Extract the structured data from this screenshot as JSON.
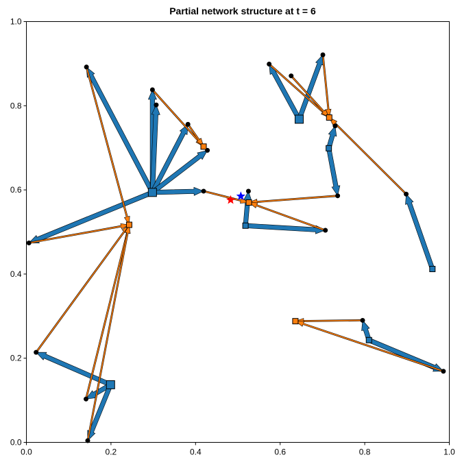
{
  "chart_data": {
    "type": "network",
    "title": "Partial network structure at t = 6",
    "xlabel": "",
    "ylabel": "",
    "xlim": [
      0,
      1
    ],
    "ylim": [
      0,
      1
    ],
    "xticks": [
      "0.0",
      "0.2",
      "0.4",
      "0.6",
      "0.8",
      "1.0"
    ],
    "yticks": [
      "0.0",
      "0.2",
      "0.4",
      "0.6",
      "0.8",
      "1.0"
    ],
    "grid": false,
    "colors": {
      "blue_edge": "#1f77b4",
      "orange_edge": "#ff7f0e",
      "node": "#000000",
      "red_star": "#ff0000",
      "blue_star": "#0000ff"
    },
    "blue_hubs": [
      {
        "id": "B1",
        "x": 0.298,
        "y": 0.594,
        "size": "large"
      },
      {
        "id": "B2",
        "x": 0.645,
        "y": 0.768,
        "size": "large"
      },
      {
        "id": "B3",
        "x": 0.199,
        "y": 0.137,
        "size": "large"
      },
      {
        "id": "B4",
        "x": 0.715,
        "y": 0.699,
        "size": "small"
      },
      {
        "id": "B5",
        "x": 0.96,
        "y": 0.412,
        "size": "small"
      },
      {
        "id": "B6",
        "x": 0.518,
        "y": 0.515,
        "size": "small"
      },
      {
        "id": "B7",
        "x": 0.81,
        "y": 0.243,
        "size": "small"
      }
    ],
    "orange_hubs": [
      {
        "id": "O1",
        "x": 0.243,
        "y": 0.517
      },
      {
        "id": "O2",
        "x": 0.419,
        "y": 0.703
      },
      {
        "id": "O3",
        "x": 0.716,
        "y": 0.772
      },
      {
        "id": "O4",
        "x": 0.526,
        "y": 0.57
      },
      {
        "id": "O5",
        "x": 0.636,
        "y": 0.288
      }
    ],
    "nodes": [
      {
        "x": 0.142,
        "y": 0.892
      },
      {
        "x": 0.298,
        "y": 0.838
      },
      {
        "x": 0.307,
        "y": 0.802
      },
      {
        "x": 0.382,
        "y": 0.756
      },
      {
        "x": 0.428,
        "y": 0.694
      },
      {
        "x": 0.419,
        "y": 0.597
      },
      {
        "x": 0.006,
        "y": 0.474
      },
      {
        "x": 0.023,
        "y": 0.214
      },
      {
        "x": 0.141,
        "y": 0.103
      },
      {
        "x": 0.145,
        "y": 0.004
      },
      {
        "x": 0.574,
        "y": 0.899
      },
      {
        "x": 0.626,
        "y": 0.871
      },
      {
        "x": 0.701,
        "y": 0.921
      },
      {
        "x": 0.73,
        "y": 0.752
      },
      {
        "x": 0.736,
        "y": 0.586
      },
      {
        "x": 0.898,
        "y": 0.59
      },
      {
        "x": 0.525,
        "y": 0.597
      },
      {
        "x": 0.707,
        "y": 0.504
      },
      {
        "x": 0.795,
        "y": 0.29
      },
      {
        "x": 0.986,
        "y": 0.169
      }
    ],
    "blue_edges": [
      {
        "from": [
          0.298,
          0.594
        ],
        "to": [
          0.142,
          0.892
        ]
      },
      {
        "from": [
          0.298,
          0.594
        ],
        "to": [
          0.298,
          0.838
        ]
      },
      {
        "from": [
          0.298,
          0.594
        ],
        "to": [
          0.307,
          0.802
        ]
      },
      {
        "from": [
          0.298,
          0.594
        ],
        "to": [
          0.382,
          0.756
        ]
      },
      {
        "from": [
          0.298,
          0.594
        ],
        "to": [
          0.428,
          0.694
        ]
      },
      {
        "from": [
          0.298,
          0.594
        ],
        "to": [
          0.419,
          0.597
        ]
      },
      {
        "from": [
          0.298,
          0.594
        ],
        "to": [
          0.006,
          0.474
        ]
      },
      {
        "from": [
          0.199,
          0.137
        ],
        "to": [
          0.023,
          0.214
        ]
      },
      {
        "from": [
          0.199,
          0.137
        ],
        "to": [
          0.141,
          0.103
        ]
      },
      {
        "from": [
          0.199,
          0.137
        ],
        "to": [
          0.145,
          0.004
        ]
      },
      {
        "from": [
          0.645,
          0.768
        ],
        "to": [
          0.574,
          0.899
        ]
      },
      {
        "from": [
          0.645,
          0.768
        ],
        "to": [
          0.701,
          0.921
        ]
      },
      {
        "from": [
          0.715,
          0.699
        ],
        "to": [
          0.73,
          0.752
        ]
      },
      {
        "from": [
          0.715,
          0.699
        ],
        "to": [
          0.736,
          0.586
        ]
      },
      {
        "from": [
          0.96,
          0.412
        ],
        "to": [
          0.898,
          0.59
        ]
      },
      {
        "from": [
          0.518,
          0.515
        ],
        "to": [
          0.525,
          0.597
        ]
      },
      {
        "from": [
          0.518,
          0.515
        ],
        "to": [
          0.707,
          0.504
        ]
      },
      {
        "from": [
          0.81,
          0.243
        ],
        "to": [
          0.795,
          0.29
        ]
      },
      {
        "from": [
          0.81,
          0.243
        ],
        "to": [
          0.986,
          0.169
        ]
      }
    ],
    "orange_edges": [
      {
        "from": [
          0.142,
          0.892
        ],
        "to": [
          0.243,
          0.517
        ]
      },
      {
        "from": [
          0.006,
          0.474
        ],
        "to": [
          0.243,
          0.517
        ]
      },
      {
        "from": [
          0.023,
          0.214
        ],
        "to": [
          0.243,
          0.517
        ]
      },
      {
        "from": [
          0.141,
          0.103
        ],
        "to": [
          0.243,
          0.517
        ]
      },
      {
        "from": [
          0.145,
          0.004
        ],
        "to": [
          0.243,
          0.517
        ]
      },
      {
        "from": [
          0.298,
          0.838
        ],
        "to": [
          0.419,
          0.703
        ]
      },
      {
        "from": [
          0.382,
          0.756
        ],
        "to": [
          0.419,
          0.703
        ]
      },
      {
        "from": [
          0.419,
          0.597
        ],
        "to": [
          0.526,
          0.57
        ]
      },
      {
        "from": [
          0.736,
          0.586
        ],
        "to": [
          0.526,
          0.57
        ]
      },
      {
        "from": [
          0.707,
          0.504
        ],
        "to": [
          0.526,
          0.57
        ]
      },
      {
        "from": [
          0.574,
          0.899
        ],
        "to": [
          0.716,
          0.772
        ]
      },
      {
        "from": [
          0.626,
          0.871
        ],
        "to": [
          0.716,
          0.772
        ]
      },
      {
        "from": [
          0.701,
          0.921
        ],
        "to": [
          0.716,
          0.772
        ]
      },
      {
        "from": [
          0.898,
          0.59
        ],
        "to": [
          0.716,
          0.772
        ]
      },
      {
        "from": [
          0.795,
          0.29
        ],
        "to": [
          0.636,
          0.288
        ]
      },
      {
        "from": [
          0.986,
          0.169
        ],
        "to": [
          0.636,
          0.288
        ]
      }
    ],
    "stars": [
      {
        "color": "red",
        "x": 0.483,
        "y": 0.576
      },
      {
        "color": "blue",
        "x": 0.507,
        "y": 0.585
      }
    ]
  }
}
